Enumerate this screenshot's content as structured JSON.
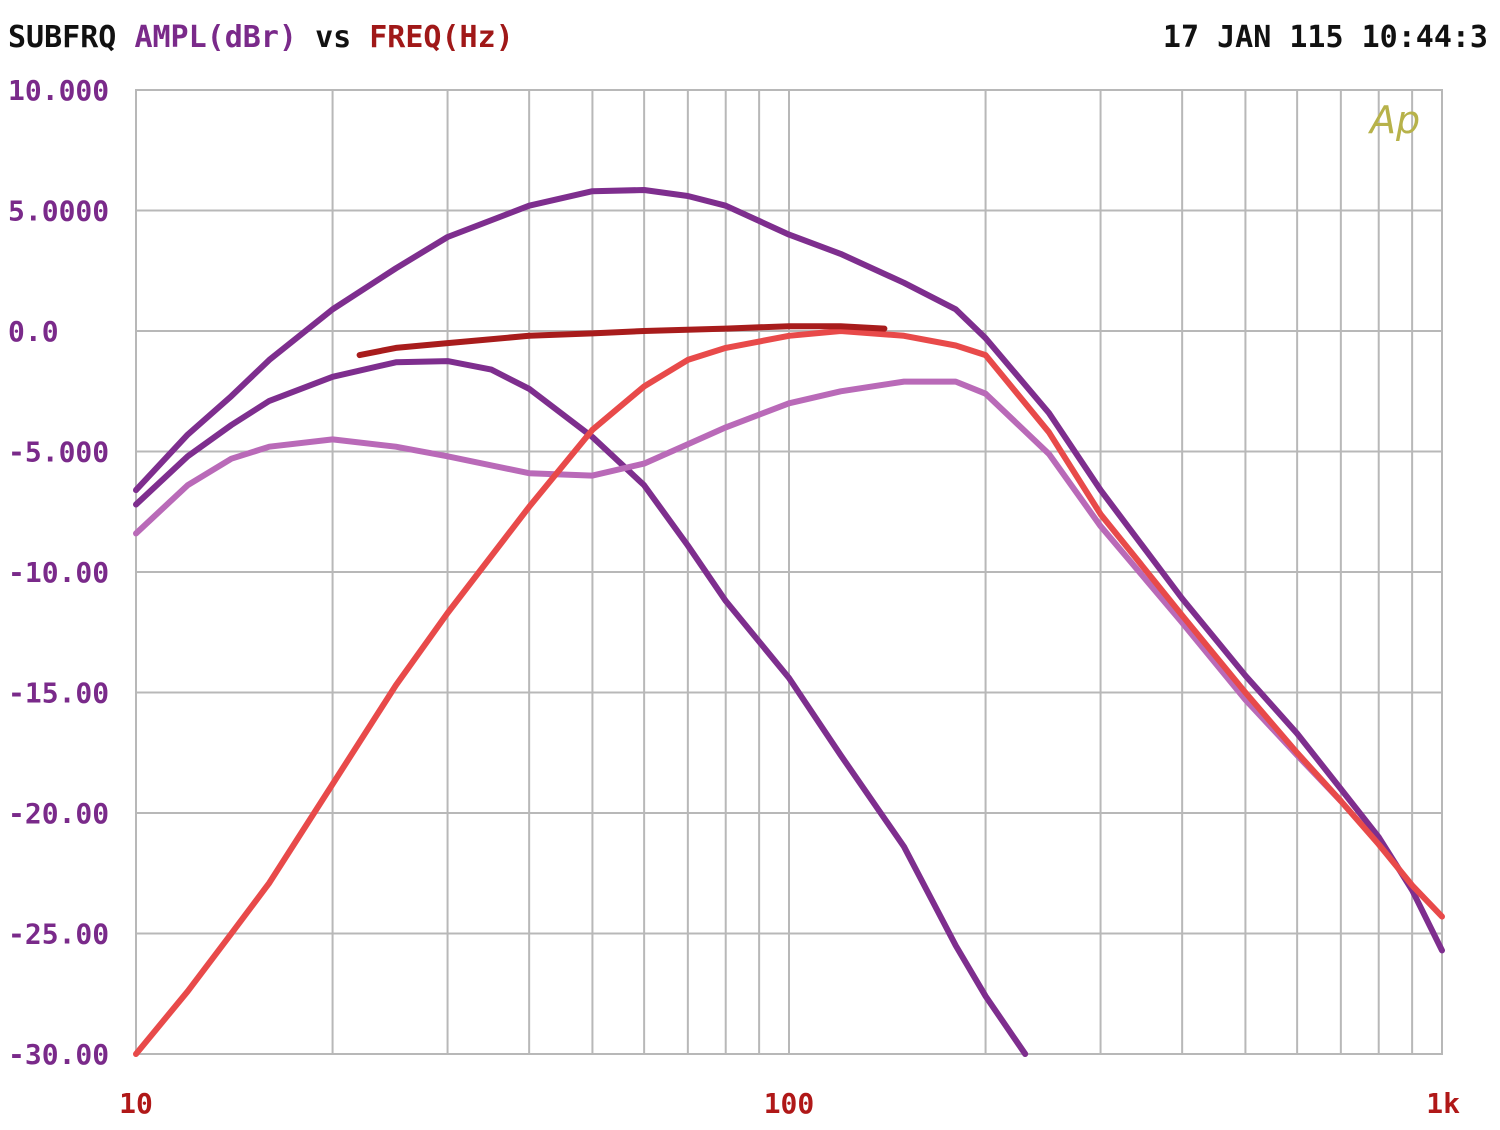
{
  "header": {
    "title_prefix": "SUBFRQ",
    "ylabel": "AMPL(dBr)",
    "vs": "vs",
    "xlabel": "FREQ(Hz)",
    "timestamp": "17 JAN 115 10:44:3"
  },
  "logo": {
    "text": "Ap"
  },
  "colors": {
    "header_text": "#111111",
    "ylabel": "#7a2a8a",
    "xlabel": "#a01818",
    "y_ticks": "#7a2a8a",
    "x_ticks": "#b01818",
    "grid": "#b8b8b8",
    "plot_border": "#b8b8b8",
    "logo": "#b7b24a"
  },
  "chart_data": {
    "type": "line",
    "title": "SUBFRQ AMPL(dBr) vs FREQ(Hz)",
    "xlabel": "FREQ(Hz)",
    "ylabel": "AMPL(dBr)",
    "xscale": "log",
    "xlim": [
      10,
      1000
    ],
    "ylim": [
      -30,
      10
    ],
    "grid": true,
    "x_ticks": [
      {
        "value": 10,
        "label": "10"
      },
      {
        "value": 100,
        "label": "100"
      },
      {
        "value": 1000,
        "label": "1k"
      }
    ],
    "y_ticks": [
      {
        "value": 10,
        "label": "10.000"
      },
      {
        "value": 5,
        "label": "5.0000"
      },
      {
        "value": 0,
        "label": "0.0"
      },
      {
        "value": -5,
        "label": "-5.000"
      },
      {
        "value": -10,
        "label": "-10.00"
      },
      {
        "value": -15,
        "label": "-15.00"
      },
      {
        "value": -20,
        "label": "-20.00"
      },
      {
        "value": -25,
        "label": "-25.00"
      },
      {
        "value": -30,
        "label": "-30.00"
      }
    ],
    "series": [
      {
        "color": "#7e2e8e",
        "points": [
          [
            10,
            -6.6
          ],
          [
            12,
            -4.3
          ],
          [
            14,
            -2.7
          ],
          [
            16,
            -1.2
          ],
          [
            20,
            0.9
          ],
          [
            25,
            2.6
          ],
          [
            30,
            3.9
          ],
          [
            40,
            5.2
          ],
          [
            50,
            5.8
          ],
          [
            60,
            5.85
          ],
          [
            70,
            5.6
          ],
          [
            80,
            5.2
          ],
          [
            100,
            4.0
          ],
          [
            120,
            3.2
          ],
          [
            150,
            2.0
          ],
          [
            180,
            0.9
          ],
          [
            200,
            -0.3
          ],
          [
            250,
            -3.4
          ],
          [
            300,
            -6.6
          ],
          [
            400,
            -11.1
          ],
          [
            500,
            -14.3
          ],
          [
            600,
            -16.7
          ],
          [
            700,
            -19.0
          ],
          [
            800,
            -21.0
          ],
          [
            900,
            -23.2
          ],
          [
            1000,
            -25.7
          ]
        ]
      },
      {
        "color": "#7e2e8e",
        "points": [
          [
            10,
            -7.2
          ],
          [
            12,
            -5.2
          ],
          [
            14,
            -3.9
          ],
          [
            16,
            -2.9
          ],
          [
            20,
            -1.9
          ],
          [
            25,
            -1.3
          ],
          [
            30,
            -1.25
          ],
          [
            35,
            -1.6
          ],
          [
            40,
            -2.4
          ],
          [
            50,
            -4.4
          ],
          [
            60,
            -6.4
          ],
          [
            70,
            -8.9
          ],
          [
            80,
            -11.2
          ],
          [
            100,
            -14.4
          ],
          [
            120,
            -17.6
          ],
          [
            150,
            -21.4
          ],
          [
            180,
            -25.5
          ],
          [
            200,
            -27.6
          ],
          [
            230,
            -30.0
          ]
        ]
      },
      {
        "color": "#b96ab8",
        "points": [
          [
            10,
            -8.4
          ],
          [
            12,
            -6.4
          ],
          [
            14,
            -5.3
          ],
          [
            16,
            -4.8
          ],
          [
            20,
            -4.5
          ],
          [
            25,
            -4.8
          ],
          [
            30,
            -5.2
          ],
          [
            40,
            -5.9
          ],
          [
            50,
            -6.0
          ],
          [
            60,
            -5.5
          ],
          [
            70,
            -4.7
          ],
          [
            80,
            -4.0
          ],
          [
            100,
            -3.0
          ],
          [
            120,
            -2.5
          ],
          [
            150,
            -2.1
          ],
          [
            180,
            -2.1
          ],
          [
            200,
            -2.6
          ],
          [
            250,
            -5.1
          ],
          [
            300,
            -8.1
          ],
          [
            400,
            -12.1
          ],
          [
            500,
            -15.3
          ],
          [
            600,
            -17.6
          ],
          [
            700,
            -19.5
          ]
        ]
      },
      {
        "color": "#e84a4a",
        "points": [
          [
            10,
            -30.0
          ],
          [
            12,
            -27.4
          ],
          [
            14,
            -25.0
          ],
          [
            16,
            -22.9
          ],
          [
            20,
            -18.8
          ],
          [
            25,
            -14.7
          ],
          [
            30,
            -11.7
          ],
          [
            40,
            -7.3
          ],
          [
            50,
            -4.1
          ],
          [
            60,
            -2.3
          ],
          [
            70,
            -1.2
          ],
          [
            80,
            -0.7
          ],
          [
            100,
            -0.2
          ],
          [
            120,
            0.0
          ],
          [
            150,
            -0.2
          ],
          [
            180,
            -0.6
          ],
          [
            200,
            -1.0
          ],
          [
            250,
            -4.2
          ],
          [
            300,
            -7.6
          ],
          [
            400,
            -11.8
          ],
          [
            500,
            -15.0
          ],
          [
            600,
            -17.5
          ],
          [
            700,
            -19.5
          ],
          [
            800,
            -21.3
          ],
          [
            900,
            -23.0
          ],
          [
            1000,
            -24.3
          ]
        ]
      },
      {
        "color": "#a81c1c",
        "points": [
          [
            22,
            -1.0
          ],
          [
            25,
            -0.7
          ],
          [
            30,
            -0.5
          ],
          [
            40,
            -0.2
          ],
          [
            50,
            -0.1
          ],
          [
            60,
            0.0
          ],
          [
            80,
            0.1
          ],
          [
            100,
            0.2
          ],
          [
            120,
            0.2
          ],
          [
            140,
            0.1
          ]
        ]
      }
    ]
  }
}
